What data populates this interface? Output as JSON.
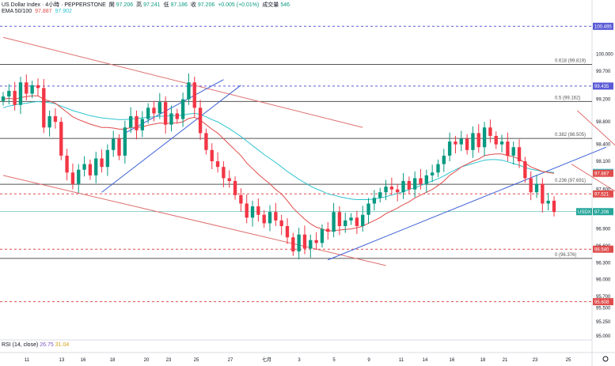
{
  "header": {
    "line1": {
      "symbol": "US Dollar Index · 4小時 · PEPPERSTONE",
      "open_label": "開",
      "open": "97.206",
      "high_label": "高",
      "high": "97.241",
      "low_label": "低",
      "low": "97.186",
      "close_label": "收",
      "close": "97.206",
      "change": "+0.005 (+0.01%)",
      "volume_label": "成交量",
      "volume": "546"
    },
    "line2": {
      "name": "EMA 50/100",
      "ema50": "97.887",
      "ema100": "97.902"
    }
  },
  "rsi": {
    "name": "RSI (14, close)",
    "v1": "26.75",
    "v2": "31.04"
  },
  "colors": {
    "up": "#089981",
    "down": "#f23645",
    "ema50": "#e04c4c",
    "ema100": "#2ec4d0",
    "trend_up": "#3b5fd6",
    "trend_down": "#e07070",
    "fib": "#555555",
    "dash_blue": "#5a5ad6",
    "dash_red": "#e04c4c",
    "current": "#26a69a"
  },
  "chart_data": {
    "type": "candlestick",
    "symbol": "US Dollar Index",
    "timeframe": "4小時",
    "y_axis": {
      "range": [
        95.0,
        100.85
      ],
      "ticks": [
        "100.000",
        "99.700",
        "99.200",
        "98.800",
        "98.400",
        "98.100",
        "97.600",
        "96.900",
        "96.600",
        "96.300",
        "96.000",
        "95.700",
        "95.500",
        "95.250",
        "95.000"
      ]
    },
    "x_axis": {
      "ticks": [
        "11",
        "13",
        "16",
        "18",
        "20",
        "23",
        "25",
        "27",
        "七月",
        "3",
        "5",
        "9",
        "11",
        "14",
        "16",
        "18",
        "21",
        "23",
        "25"
      ]
    },
    "fib_levels": [
      {
        "ratio": "0.618",
        "value": "99.819",
        "label": "0.618 (99.819)"
      },
      {
        "ratio": "0.5",
        "value": "99.162",
        "label": "0.5 (99.162)"
      },
      {
        "ratio": "0.382",
        "value": "98.505",
        "label": "0.382 (98.505)"
      },
      {
        "ratio": "0.236",
        "value": "97.691",
        "label": "0.236 (97.691)"
      },
      {
        "ratio": "0",
        "value": "96.376",
        "label": "0 (96.376)"
      }
    ],
    "price_tags": [
      {
        "value": 100.495,
        "text": "100.495",
        "kind": "line-blue"
      },
      {
        "value": 99.435,
        "text": "99.435",
        "kind": "line-blue"
      },
      {
        "value": 97.902,
        "text": "97.902",
        "kind": "ema100"
      },
      {
        "value": 97.887,
        "text": "97.887",
        "kind": "ema50"
      },
      {
        "value": 97.521,
        "text": "97.521",
        "kind": "line-red"
      },
      {
        "value": 97.206,
        "text": "97.206",
        "kind": "current",
        "symbol": "USDX"
      },
      {
        "value": 96.54,
        "text": "96.540",
        "kind": "line-red"
      },
      {
        "value": 95.608,
        "text": "95.608",
        "kind": "line-red"
      }
    ],
    "closes": [
      99.25,
      99.35,
      99.1,
      99.5,
      99.3,
      99.45,
      99.4,
      98.7,
      98.9,
      98.8,
      98.2,
      97.9,
      97.7,
      97.95,
      98.05,
      97.85,
      98.15,
      98.0,
      98.3,
      98.5,
      98.2,
      98.7,
      98.9,
      98.65,
      98.85,
      99.05,
      98.95,
      99.15,
      98.75,
      98.95,
      98.85,
      99.2,
      99.5,
      99.05,
      98.6,
      98.3,
      98.1,
      98.0,
      97.8,
      97.75,
      97.5,
      97.35,
      97.1,
      97.3,
      97.15,
      97.0,
      97.2,
      97.05,
      96.95,
      96.75,
      96.5,
      96.8,
      96.55,
      96.7,
      96.65,
      96.9,
      96.85,
      97.2,
      96.95,
      97.05,
      97.1,
      96.95,
      97.15,
      97.35,
      97.45,
      97.55,
      97.65,
      97.6,
      97.55,
      97.75,
      97.6,
      97.8,
      97.7,
      97.85,
      97.9,
      98.05,
      98.2,
      98.45,
      98.4,
      98.5,
      98.3,
      98.6,
      98.35,
      98.7,
      98.55,
      98.4,
      98.45,
      98.2,
      98.35,
      98.1,
      97.8,
      97.55,
      97.7,
      97.35,
      97.4,
      97.2
    ],
    "ema50": [
      99.2,
      99.22,
      99.2,
      99.23,
      99.25,
      99.26,
      99.26,
      99.2,
      99.17,
      99.13,
      99.05,
      98.97,
      98.89,
      98.84,
      98.8,
      98.76,
      98.73,
      98.7,
      98.7,
      98.69,
      98.67,
      98.67,
      98.7,
      98.7,
      98.71,
      98.74,
      98.76,
      98.78,
      98.77,
      98.78,
      98.78,
      98.8,
      98.86,
      98.88,
      98.83,
      98.75,
      98.67,
      98.6,
      98.5,
      98.4,
      98.3,
      98.2,
      98.07,
      97.97,
      97.87,
      97.78,
      97.7,
      97.6,
      97.52,
      97.4,
      97.27,
      97.17,
      97.07,
      96.99,
      96.93,
      96.9,
      96.86,
      96.87,
      96.88,
      96.89,
      96.9,
      96.92,
      96.95,
      97.0,
      97.05,
      97.1,
      97.17,
      97.22,
      97.27,
      97.33,
      97.38,
      97.45,
      97.5,
      97.55,
      97.6,
      97.67,
      97.75,
      97.85,
      97.92,
      98.0,
      98.05,
      98.1,
      98.14,
      98.2,
      98.22,
      98.23,
      98.23,
      98.2,
      98.18,
      98.14,
      98.07,
      98.0,
      97.96,
      97.92,
      97.9,
      97.887
    ],
    "ema100": [
      99.05,
      99.08,
      99.1,
      99.12,
      99.13,
      99.15,
      99.16,
      99.15,
      99.14,
      99.12,
      99.08,
      99.04,
      99.0,
      98.97,
      98.94,
      98.91,
      98.89,
      98.87,
      98.86,
      98.85,
      98.84,
      98.84,
      98.85,
      98.86,
      98.87,
      98.88,
      98.89,
      98.9,
      98.9,
      98.91,
      98.91,
      98.92,
      98.94,
      98.95,
      98.93,
      98.89,
      98.84,
      98.8,
      98.74,
      98.68,
      98.61,
      98.54,
      98.46,
      98.38,
      98.3,
      98.22,
      98.15,
      98.08,
      98.0,
      97.92,
      97.85,
      97.78,
      97.72,
      97.66,
      97.61,
      97.57,
      97.52,
      97.5,
      97.47,
      97.45,
      97.43,
      97.42,
      97.42,
      97.42,
      97.43,
      97.45,
      97.47,
      97.5,
      97.53,
      97.56,
      97.6,
      97.63,
      97.67,
      97.71,
      97.75,
      97.79,
      97.84,
      97.9,
      97.95,
      98.0,
      98.03,
      98.06,
      98.09,
      98.12,
      98.13,
      98.13,
      98.12,
      98.09,
      98.06,
      98.03,
      97.99,
      97.96,
      97.94,
      97.92,
      97.91,
      97.902
    ],
    "trendlines": [
      {
        "name": "",
        "color": "trend_down",
        "from": [
          0,
          100.3
        ],
        "to": [
          62,
          98.7
        ]
      },
      {
        "name": "",
        "color": "trend_down",
        "from": [
          0,
          97.85
        ],
        "to": [
          66,
          96.25
        ]
      },
      {
        "name": "",
        "color": "trend_up",
        "from": [
          17,
          97.55
        ],
        "to": [
          41,
          99.45
        ]
      },
      {
        "name": "",
        "color": "trend_up",
        "from": [
          21,
          98.6
        ],
        "to": [
          38,
          99.55
        ]
      },
      {
        "name": "",
        "color": "trend_up",
        "from": [
          56,
          96.35
        ],
        "to": [
          104,
          98.35
        ]
      },
      {
        "name": "",
        "color": "trend_down",
        "from": [
          99,
          99.0
        ],
        "to": [
          116,
          97.4
        ]
      },
      {
        "name": "",
        "color": "trend_down",
        "from": [
          98,
          98.05
        ],
        "to": [
          116,
          96.9
        ]
      }
    ]
  }
}
